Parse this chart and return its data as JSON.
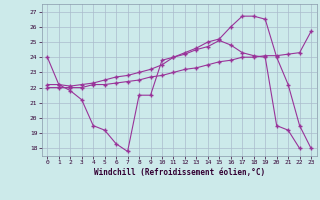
{
  "xlabel": "Windchill (Refroidissement éolien,°C)",
  "background_color": "#cceaea",
  "grid_color": "#aabbcc",
  "line_color": "#993399",
  "xlim": [
    -0.5,
    23.5
  ],
  "ylim": [
    17.5,
    27.5
  ],
  "yticks": [
    18,
    19,
    20,
    21,
    22,
    23,
    24,
    25,
    26,
    27
  ],
  "xticks": [
    0,
    1,
    2,
    3,
    4,
    5,
    6,
    7,
    8,
    9,
    10,
    11,
    12,
    13,
    14,
    15,
    16,
    17,
    18,
    19,
    20,
    21,
    22,
    23
  ],
  "series": [
    {
      "x": [
        0,
        1,
        2,
        3,
        4,
        5,
        6,
        7,
        8,
        9,
        10,
        11,
        12,
        13,
        14,
        15,
        16,
        17,
        18,
        19,
        20,
        21,
        22
      ],
      "y": [
        24.0,
        22.2,
        21.8,
        21.2,
        19.5,
        19.2,
        18.3,
        17.8,
        21.5,
        21.5,
        23.8,
        24.0,
        24.2,
        24.5,
        24.7,
        25.1,
        24.8,
        24.3,
        24.1,
        24.0,
        19.5,
        19.2,
        18.0
      ]
    },
    {
      "x": [
        0,
        1,
        2,
        3,
        4,
        5,
        6,
        7,
        8,
        9,
        10,
        11,
        12,
        13,
        14,
        15,
        16,
        17,
        18,
        19,
        20,
        21,
        22,
        23
      ],
      "y": [
        22.0,
        22.0,
        22.0,
        22.0,
        22.2,
        22.2,
        22.3,
        22.4,
        22.5,
        22.7,
        22.8,
        23.0,
        23.2,
        23.3,
        23.5,
        23.7,
        23.8,
        24.0,
        24.0,
        24.1,
        24.1,
        24.2,
        24.3,
        25.7
      ]
    },
    {
      "x": [
        0,
        1,
        2,
        3,
        4,
        5,
        6,
        7,
        8,
        9,
        10,
        11,
        12,
        13,
        14,
        15,
        16,
        17,
        18,
        19,
        20,
        21,
        22,
        23
      ],
      "y": [
        22.2,
        22.2,
        22.1,
        22.2,
        22.3,
        22.5,
        22.7,
        22.8,
        23.0,
        23.2,
        23.5,
        24.0,
        24.3,
        24.6,
        25.0,
        25.2,
        26.0,
        26.7,
        26.7,
        26.5,
        24.0,
        22.2,
        19.5,
        18.0
      ]
    }
  ]
}
